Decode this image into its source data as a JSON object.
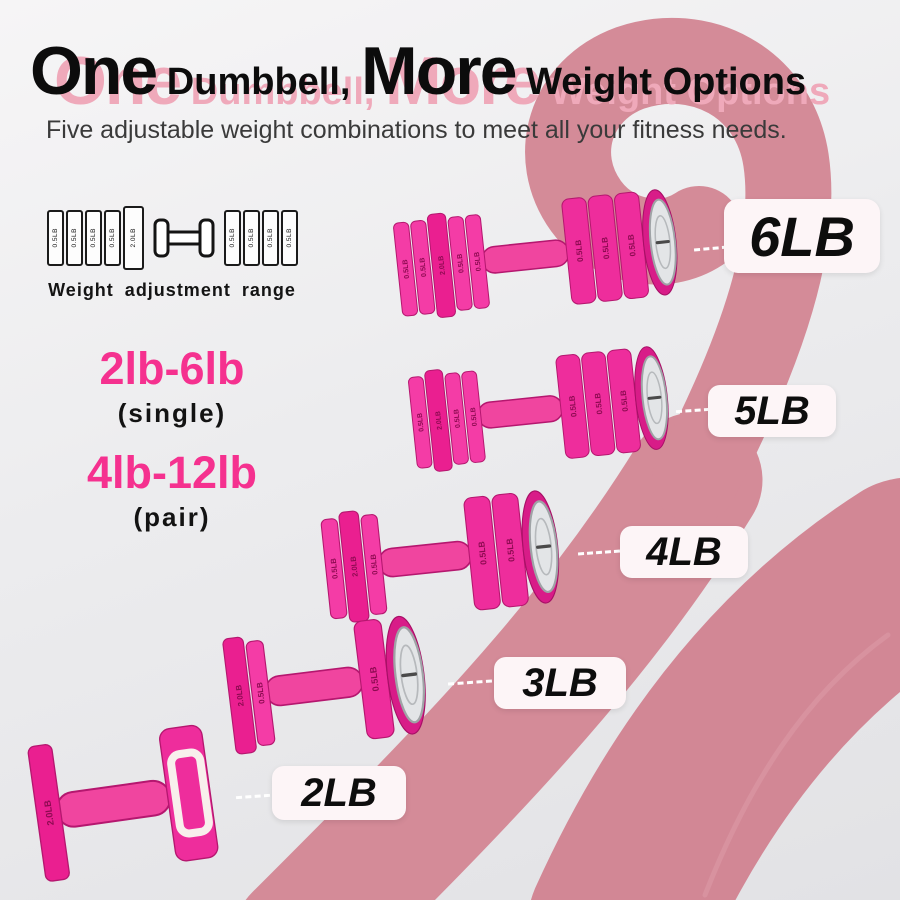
{
  "title": {
    "big1": "One",
    "small1": " Dumbbell, ",
    "big2": "More",
    "small2": " Weight Options",
    "full": "One Dumbbell, More Weight Options"
  },
  "subtitle": "Five adjustable weight combinations to meet all your fitness needs.",
  "adjustment_diagram": {
    "left_plates": [
      "0.5LB",
      "0.5LB",
      "0.5LB",
      "0.5LB",
      "2.0LB"
    ],
    "right_plates": [
      "0.5LB",
      "0.5LB",
      "0.5LB",
      "0.5LB"
    ],
    "caption": "Weight adjustment range"
  },
  "weight_ranges": [
    {
      "range": "2lb-6lb",
      "qualifier": "(single)"
    },
    {
      "range": "4lb-12lb",
      "qualifier": "(pair)"
    }
  ],
  "colors": {
    "accent_pink": "#f5318f",
    "dumbbell_pink": "#ee2d9c",
    "ribbon_rose": "#d48b98",
    "badge_bg": "#fdf5f7"
  },
  "dumbbells": [
    {
      "badge": "6LB",
      "left_plates": [
        "0.5LB",
        "0.5LB",
        "2.0LB",
        "0.5LB",
        "0.5LB"
      ],
      "right_plates": [
        "0.5LB",
        "0.5LB",
        "0.5LB"
      ],
      "cap": "disc"
    },
    {
      "badge": "5LB",
      "left_plates": [
        "0.5LB",
        "2.0LB",
        "0.5LB",
        "0.5LB"
      ],
      "right_plates": [
        "0.5LB",
        "0.5LB",
        "0.5LB"
      ],
      "cap": "disc"
    },
    {
      "badge": "4LB",
      "left_plates": [
        "0.5LB",
        "2.0LB",
        "0.5LB"
      ],
      "right_plates": [
        "0.5LB",
        "0.5LB"
      ],
      "cap": "disc"
    },
    {
      "badge": "3LB",
      "left_plates": [
        "2.0LB",
        "0.5LB"
      ],
      "right_plates": [
        "0.5LB"
      ],
      "cap": "disc"
    },
    {
      "badge": "2LB",
      "left_plates": [
        "2.0LB"
      ],
      "right_plates": [],
      "cap": "clip"
    }
  ]
}
